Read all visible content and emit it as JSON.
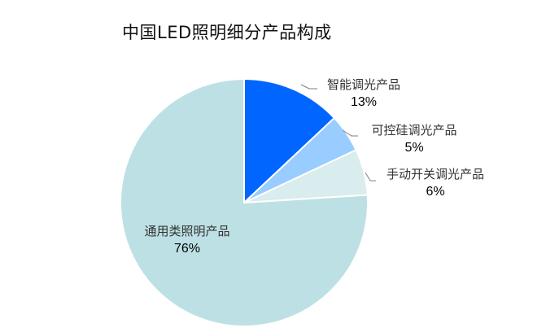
{
  "chart_data": {
    "type": "pie",
    "title": "中国LED照明细分产品构成",
    "categories": [
      "智能调光产品",
      "可控硅调光产品",
      "手动开关调光产品",
      "通用类照明产品"
    ],
    "values": [
      13,
      5,
      6,
      76
    ],
    "value_labels": [
      "13%",
      "5%",
      "6%",
      "76%"
    ],
    "colors": [
      "#0066ff",
      "#99ccff",
      "#d9ecee",
      "#bde0e4"
    ],
    "start_angle_deg": 0,
    "direction": "clockwise",
    "legend": "none (data labels with leader lines)"
  },
  "labels": [
    {
      "name": "智能调光产品",
      "pct": "13%"
    },
    {
      "name": "可控硅调光产品",
      "pct": "5%"
    },
    {
      "name": "手动开关调光产品",
      "pct": "6%"
    },
    {
      "name": "通用类照明产品",
      "pct": "76%"
    }
  ]
}
